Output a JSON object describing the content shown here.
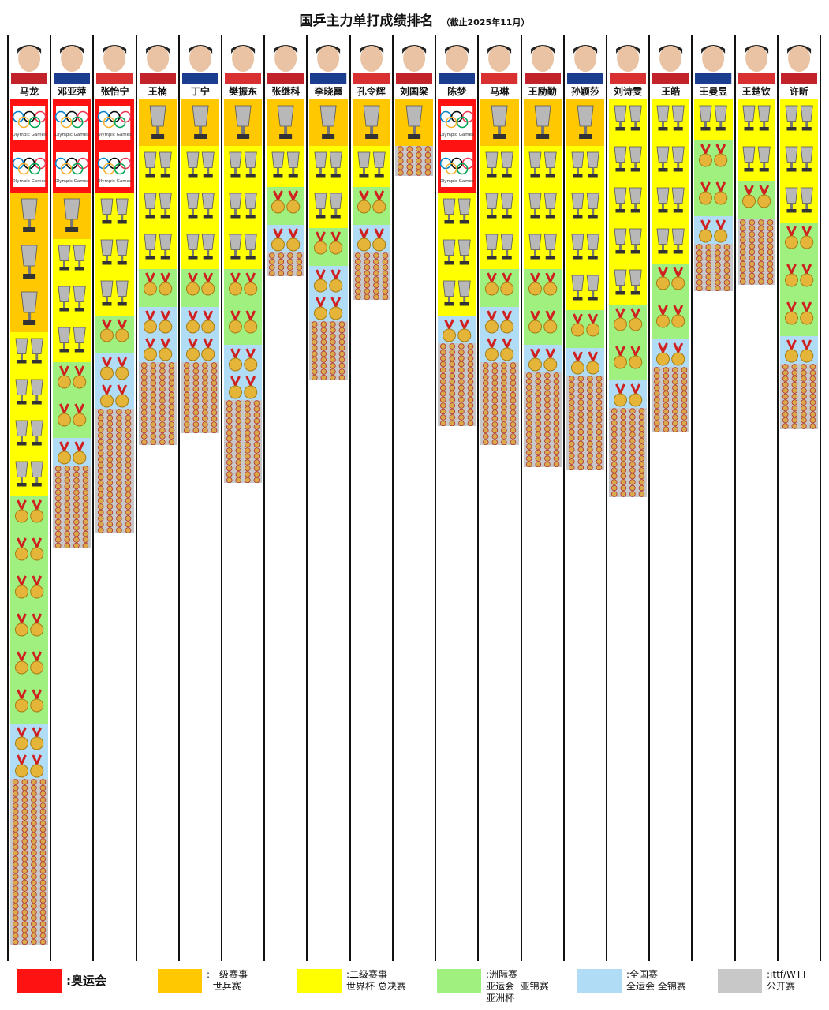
{
  "title": "国乒主力单打成绩排名",
  "subtitle": "（截止2025年11月）",
  "colors": {
    "olympic": "#ff1212",
    "tier1": "#ffc800",
    "tier2": "#ffff00",
    "continental": "#a0f080",
    "national": "#b0dcf5",
    "open": "#c8c8c8"
  },
  "legend": [
    {
      "key": "olympic",
      "text": ":奥运会"
    },
    {
      "key": "tier1",
      "text": ":一级赛事\n  世乒赛"
    },
    {
      "key": "tier2",
      "text": ":二级赛事\n世界杯 总决赛"
    },
    {
      "key": "continental",
      "text": ":洲际赛\n亚运会  亚锦赛\n亚洲杯"
    },
    {
      "key": "national",
      "text": ":全国赛\n全运会 全锦赛"
    },
    {
      "key": "open",
      "text": ":ittf/WTT\n公开赛"
    }
  ],
  "chart_data": {
    "type": "stacked-bar",
    "title": "国乒主力单打成绩排名",
    "subtitle": "（截止2025年11月）",
    "categories": [
      "马龙",
      "邓亚萍",
      "张怡宁",
      "王楠",
      "丁宁",
      "樊振东",
      "张继科",
      "李晓霞",
      "孔令辉",
      "刘国梁",
      "陈梦",
      "马琳",
      "王励勤",
      "孙颖莎",
      "刘诗雯",
      "王皓",
      "王曼昱",
      "王楚钦",
      "许昕"
    ],
    "series": [
      {
        "name": "奥运会",
        "values": [
          2,
          2,
          2,
          0,
          0,
          0,
          0,
          0,
          0,
          0,
          2,
          0,
          0,
          0,
          0,
          0,
          0,
          0,
          0
        ]
      },
      {
        "name": "一级赛事 世乒赛",
        "values": [
          3,
          1,
          0,
          1,
          1,
          1,
          1,
          1,
          1,
          1,
          0,
          1,
          1,
          1,
          0,
          0,
          0,
          0,
          0
        ]
      },
      {
        "name": "二级赛事 世界杯 总决赛",
        "values": [
          4,
          3,
          3,
          3,
          3,
          3,
          1,
          2,
          1,
          0,
          3,
          3,
          3,
          4,
          5,
          4,
          1,
          2,
          3
        ]
      },
      {
        "name": "洲际赛 亚运会 亚锦赛 亚洲杯",
        "values": [
          6,
          2,
          1,
          1,
          1,
          2,
          1,
          1,
          1,
          0,
          0,
          1,
          2,
          1,
          2,
          2,
          2,
          1,
          3
        ]
      },
      {
        "name": "全国赛 全运会 全锦赛",
        "values": [
          2,
          1,
          2,
          2,
          2,
          2,
          1,
          2,
          1,
          0,
          1,
          2,
          1,
          1,
          1,
          1,
          1,
          0,
          1
        ]
      },
      {
        "name": "ittf/WTT 公开赛",
        "values": [
          28,
          14,
          21,
          14,
          12,
          14,
          4,
          10,
          8,
          5,
          14,
          14,
          16,
          16,
          15,
          11,
          8,
          11,
          11
        ]
      }
    ]
  }
}
